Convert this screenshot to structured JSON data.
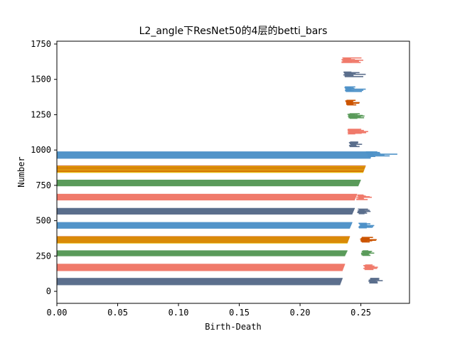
{
  "chart_data": {
    "type": "bar",
    "orientation": "horizontal",
    "title": "L2_angle下ResNet50的4层的betti_bars",
    "xlabel": "Birth-Death",
    "ylabel": "Number",
    "xlim": [
      0,
      0.29
    ],
    "ylim": [
      -85,
      1770
    ],
    "xticks": [
      0.0,
      0.05,
      0.1,
      0.15,
      0.2,
      0.25
    ],
    "xtick_labels": [
      "0.00",
      "0.05",
      "0.10",
      "0.15",
      "0.20",
      "0.25"
    ],
    "yticks": [
      0,
      250,
      500,
      750,
      1000,
      1250,
      1500,
      1750
    ],
    "ytick_labels": [
      "0",
      "250",
      "500",
      "750",
      "1000",
      "1250",
      "1500",
      "1750"
    ],
    "grid": false,
    "legend": "none",
    "palette": [
      "#5b6e8c",
      "#f07a6b",
      "#5a9b5a",
      "#cc5500",
      "#4f92c8"
    ],
    "band_pattern": "repeating color bands of 3 bars each, cycling through the palette; yellow/red striped band uses #e8c010 over #cc5500",
    "solid_bands": [
      {
        "y_start": 45,
        "y_end": 95,
        "color": "#5b6e8c",
        "x_start": 0.0,
        "x_end": 0.235
      },
      {
        "y_start": 145,
        "y_end": 195,
        "color": "#f07a6b",
        "x_start": 0.0,
        "x_end": 0.237
      },
      {
        "y_start": 250,
        "y_end": 290,
        "color": "#5a9b5a",
        "x_start": 0.0,
        "x_end": 0.239
      },
      {
        "y_start": 340,
        "y_end": 390,
        "color": "#cc5500",
        "x_start": 0.0,
        "x_end": 0.241,
        "striped": true
      },
      {
        "y_start": 445,
        "y_end": 490,
        "color": "#4f92c8",
        "x_start": 0.0,
        "x_end": 0.243
      },
      {
        "y_start": 545,
        "y_end": 590,
        "color": "#5b6e8c",
        "x_start": 0.0,
        "x_end": 0.245
      },
      {
        "y_start": 645,
        "y_end": 690,
        "color": "#f07a6b",
        "x_start": 0.0,
        "x_end": 0.247
      },
      {
        "y_start": 745,
        "y_end": 790,
        "color": "#5a9b5a",
        "x_start": 0.0,
        "x_end": 0.25
      },
      {
        "y_start": 840,
        "y_end": 890,
        "color": "#cc5500",
        "x_start": 0.0,
        "x_end": 0.254,
        "striped": true
      },
      {
        "y_start": 940,
        "y_end": 990,
        "color": "#4f92c8",
        "x_start": 0.0,
        "x_end": 0.26
      }
    ],
    "spike_clusters": [
      {
        "y_center": 75,
        "color": "#5b6e8c",
        "x_base": 0.262,
        "x_max": 0.268
      },
      {
        "y_center": 170,
        "color": "#f07a6b",
        "x_base": 0.258,
        "x_max": 0.264
      },
      {
        "y_center": 270,
        "color": "#5a9b5a",
        "x_base": 0.256,
        "x_max": 0.261
      },
      {
        "y_center": 365,
        "color": "#cc5500",
        "x_base": 0.255,
        "x_max": 0.263
      },
      {
        "y_center": 465,
        "color": "#4f92c8",
        "x_base": 0.254,
        "x_max": 0.261
      },
      {
        "y_center": 565,
        "color": "#5b6e8c",
        "x_base": 0.253,
        "x_max": 0.258
      },
      {
        "y_center": 665,
        "color": "#f07a6b",
        "x_base": 0.252,
        "x_max": 0.259
      },
      {
        "y_center": 970,
        "color": "#4f92c8",
        "x_base": 0.26,
        "x_max": 0.28
      },
      {
        "y_center": 1040,
        "color": "#5b6e8c",
        "x_base": 0.246,
        "x_max": 0.251
      },
      {
        "y_center": 1130,
        "color": "#f07a6b",
        "x_base": 0.245,
        "x_max": 0.256
      },
      {
        "y_center": 1240,
        "color": "#5a9b5a",
        "x_base": 0.245,
        "x_max": 0.253
      },
      {
        "y_center": 1335,
        "color": "#cc5500",
        "x_base": 0.243,
        "x_max": 0.249
      },
      {
        "y_center": 1430,
        "color": "#4f92c8",
        "x_base": 0.242,
        "x_max": 0.254
      },
      {
        "y_center": 1535,
        "color": "#5b6e8c",
        "x_base": 0.241,
        "x_max": 0.254
      },
      {
        "y_center": 1635,
        "color": "#f07a6b",
        "x_base": 0.24,
        "x_max": 0.252
      }
    ]
  }
}
